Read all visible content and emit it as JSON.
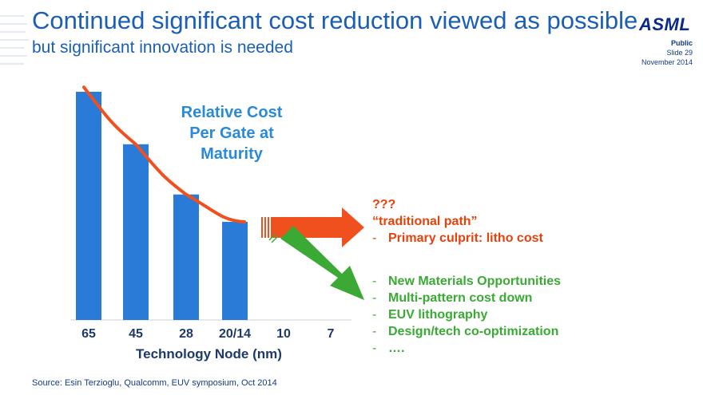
{
  "header": {
    "title": "Continued significant cost reduction viewed as possible",
    "subtitle": "but significant innovation is needed"
  },
  "brand": {
    "logo_text": "ASML",
    "classification": "Public",
    "slide": "Slide 29",
    "date": "November 2014",
    "colors": {
      "title": "#1a5fb4",
      "bar": "#2a7ad8",
      "trend": "#f0501e",
      "traditional": "#e8410a",
      "innovation": "#3aaa35"
    }
  },
  "chart_data": {
    "type": "bar",
    "title": "Relative Cost Per Gate at Maturity",
    "title_lines": [
      "Relative Cost",
      "Per Gate at Maturity"
    ],
    "xlabel": "Technology Node (nm)",
    "ylabel": "",
    "categories": [
      "65",
      "45",
      "28",
      "20/14",
      "10",
      "7"
    ],
    "values": [
      1.0,
      0.77,
      0.55,
      0.43,
      null,
      null
    ],
    "ylim": [
      0,
      1.0
    ],
    "trend_line": {
      "color": "#f0501e",
      "points": [
        1.02,
        0.77,
        0.55,
        0.43
      ]
    },
    "legend": "none",
    "grid": false
  },
  "annotations": {
    "traditional": {
      "question": "???",
      "path": "“traditional path”",
      "dash": "-",
      "culprit": "Primary culprit: litho cost"
    },
    "innovation": {
      "dash": "-",
      "items": [
        "New Materials Opportunities",
        "Multi-pattern cost down",
        "EUV lithography",
        "Design/tech co-optimization",
        "…."
      ]
    }
  },
  "footer": {
    "source": "Source: Esin Terzioglu, Qualcomm, EUV symposium, Oct 2014"
  }
}
